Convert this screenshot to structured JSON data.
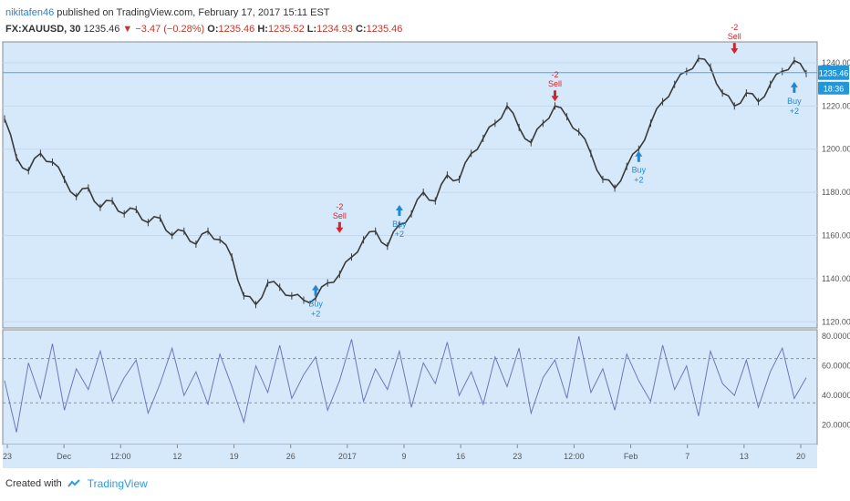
{
  "header": {
    "username": "nikitafen46",
    "published": "published on TradingView.com, February 17, 2017 15:11 EST",
    "symbol": "FX:XAUUSD, 30",
    "last": "1235.46",
    "change": "▼ −3.47 (−0.28%)",
    "open_label": "O:",
    "open": "1235.46",
    "high_label": "H:",
    "high": "1235.52",
    "low_label": "L:",
    "low": "1234.93",
    "close_label": "C:",
    "close": "1235.46"
  },
  "price_badge": {
    "value": "1235.46",
    "timer": "18:36"
  },
  "colors": {
    "background": "#d6e9fb",
    "candle": "#3a3a3a",
    "sell": "#d6222a",
    "buy": "#1e88d8",
    "rsi_line": "#6a78b8",
    "price_line": "#4aa8e8",
    "badge": "#2196d8"
  },
  "chart_data": [
    {
      "type": "line",
      "title": "",
      "series": [
        {
          "values": [
            1214,
            1196,
            1190,
            1198,
            1194,
            1186,
            1178,
            1182,
            1173,
            1176,
            1170,
            1172,
            1166,
            1168,
            1160,
            1162,
            1156,
            1162,
            1158,
            1150,
            1132,
            1128,
            1138,
            1136,
            1132,
            1130,
            1131,
            1138,
            1142,
            1150,
            1158,
            1162,
            1155,
            1165,
            1170,
            1180,
            1176,
            1188,
            1186,
            1198,
            1205,
            1212,
            1220,
            1210,
            1203,
            1212,
            1220,
            1215,
            1208,
            1198,
            1186,
            1182,
            1192,
            1200,
            1212,
            1222,
            1230,
            1236,
            1242,
            1238,
            1226,
            1220,
            1226,
            1222,
            1230,
            1236,
            1241,
            1235
          ]
        }
      ],
      "yticks": [
        "1240.00",
        "1220.00",
        "1200.00",
        "1180.00",
        "1160.00",
        "1140.00",
        "1120.00"
      ],
      "ylim": [
        1118,
        1248
      ],
      "xticks": [
        "23",
        "Dec",
        "12:00",
        "12",
        "19",
        "26",
        "2017",
        "9",
        "16",
        "23",
        "12:00",
        "Feb",
        "7",
        "13",
        "20"
      ],
      "annotations": [
        {
          "kind": "sell",
          "label": "Sell",
          "qty": "-2",
          "index": 28,
          "value": 1162
        },
        {
          "kind": "sell",
          "label": "Sell",
          "qty": "-2",
          "index": 46,
          "value": 1223
        },
        {
          "kind": "sell",
          "label": "Sell",
          "qty": "-2",
          "index": 61,
          "value": 1245
        },
        {
          "kind": "buy",
          "label": "Buy",
          "qty": "+2",
          "index": 26,
          "value": 1138
        },
        {
          "kind": "buy",
          "label": "Buy",
          "qty": "+2",
          "index": 33,
          "value": 1175
        },
        {
          "kind": "buy",
          "label": "Buy",
          "qty": "+2",
          "index": 53,
          "value": 1200
        },
        {
          "kind": "buy",
          "label": "Buy",
          "qty": "+2",
          "index": 66,
          "value": 1232
        }
      ],
      "price_line": 1235.46
    },
    {
      "type": "line",
      "title": "",
      "series": [
        {
          "values": [
            50,
            15,
            62,
            38,
            75,
            30,
            58,
            44,
            70,
            36,
            52,
            64,
            28,
            48,
            72,
            40,
            56,
            34,
            68,
            46,
            22,
            60,
            42,
            74,
            38,
            54,
            66,
            30,
            50,
            78,
            36,
            58,
            44,
            70,
            32,
            62,
            48,
            76,
            40,
            56,
            34,
            66,
            46,
            72,
            28,
            52,
            64,
            38,
            80,
            42,
            58,
            30,
            68,
            50,
            36,
            74,
            44,
            60,
            26,
            70,
            48,
            40,
            64,
            32,
            56,
            72,
            38,
            52
          ]
        }
      ],
      "yticks": [
        "80.0000",
        "60.0000",
        "40.0000",
        "20.0000"
      ],
      "ylim": [
        8,
        82
      ],
      "levels": [
        65,
        35
      ]
    }
  ],
  "footer": {
    "created_with": "Created with",
    "brand": "TradingView"
  }
}
